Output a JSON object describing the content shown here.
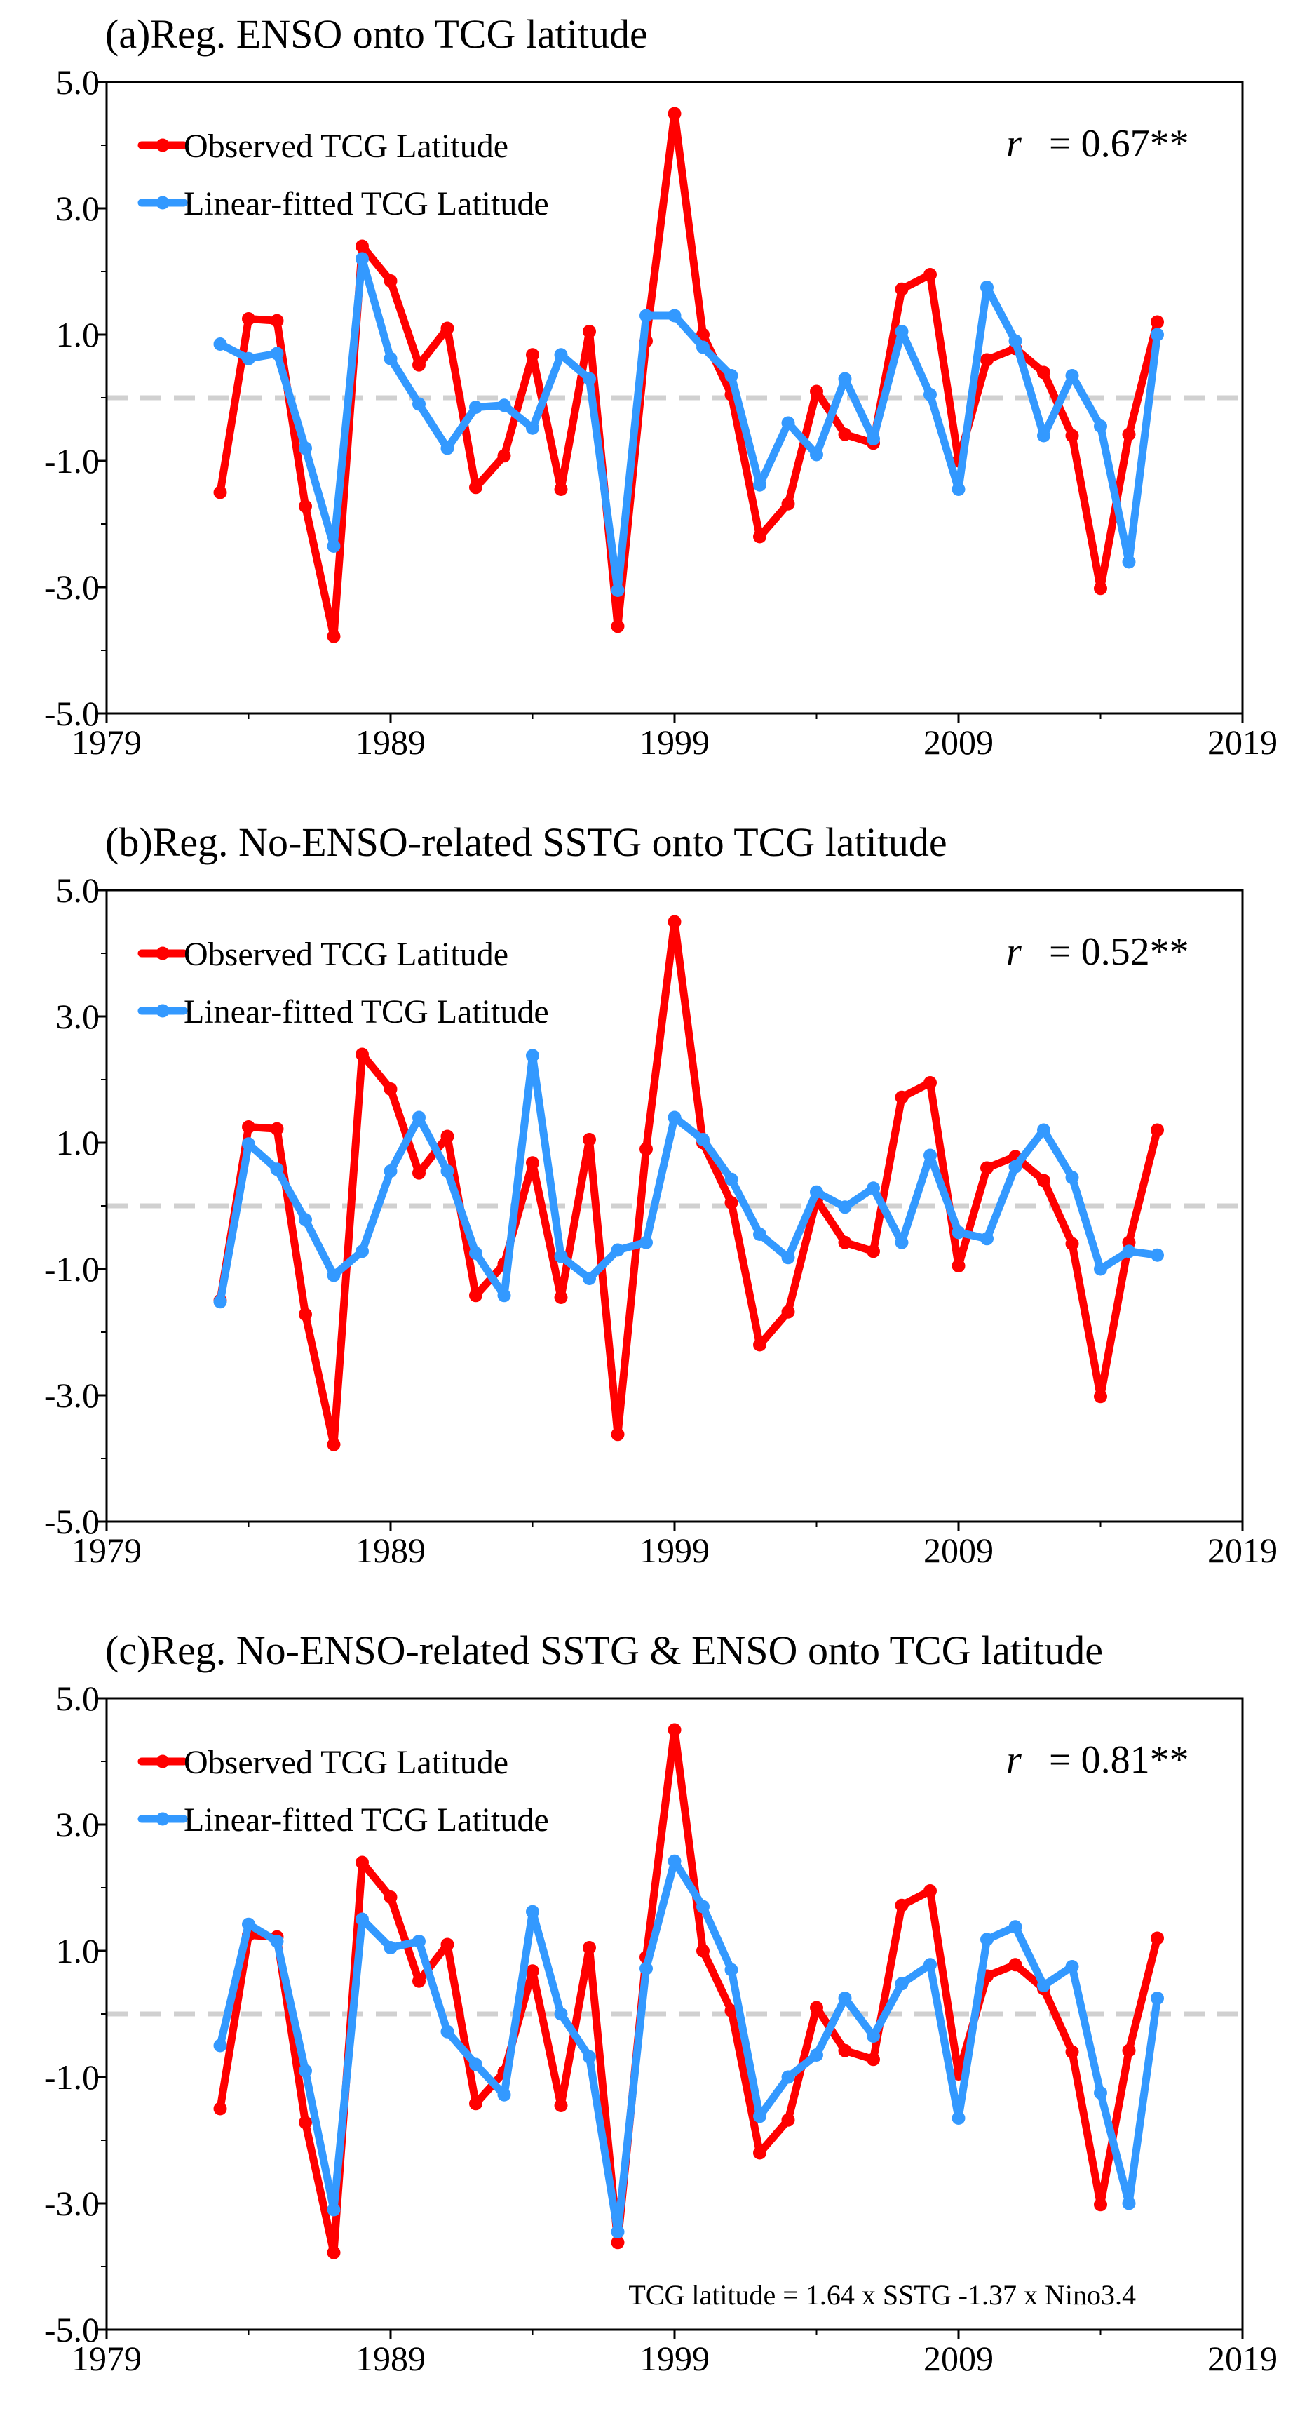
{
  "colors": {
    "observed": "#ff0000",
    "fitted": "#3399ff",
    "zero_line": "#d0d0d0",
    "axis": "#000000"
  },
  "chart_data": [
    {
      "type": "line",
      "title": "(a)Reg. ENSO onto TCG latitude",
      "xlabel": "",
      "ylabel": "",
      "xlim": [
        1979,
        2019
      ],
      "ylim": [
        -5,
        5
      ],
      "x_ticks": [
        "1979",
        "1989",
        "1999",
        "2009",
        "2019"
      ],
      "y_ticks": [
        "-5.0",
        "-3.0",
        "-1.0",
        "1.0",
        "3.0",
        "5.0"
      ],
      "correlation_symbol": "r",
      "correlation_value": "= 0.67**",
      "x": [
        1983,
        1984,
        1985,
        1986,
        1987,
        1988,
        1989,
        1990,
        1991,
        1992,
        1993,
        1994,
        1995,
        1996,
        1997,
        1998,
        1999,
        2000,
        2001,
        2002,
        2003,
        2004,
        2005,
        2006,
        2007,
        2008,
        2009,
        2010,
        2011,
        2012,
        2013,
        2014,
        2015,
        2016
      ],
      "series": [
        {
          "name": "Observed TCG Latitude",
          "values": [
            -1.5,
            1.25,
            1.22,
            -1.72,
            -3.78,
            2.4,
            1.85,
            0.52,
            1.1,
            -1.42,
            -0.92,
            0.68,
            -1.45,
            1.05,
            -3.62,
            0.9,
            4.5,
            1.0,
            0.05,
            -2.2,
            -1.68,
            0.1,
            -0.58,
            -0.72,
            1.72,
            1.95,
            -1.0,
            0.6,
            0.78,
            0.4,
            -0.6,
            -3.02,
            -0.58,
            1.2
          ]
        },
        {
          "name": "Linear-fitted TCG Latitude",
          "values": [
            0.85,
            0.62,
            0.7,
            -0.8,
            -2.35,
            2.2,
            0.62,
            -0.1,
            -0.8,
            -0.15,
            -0.12,
            -0.48,
            0.68,
            0.3,
            -3.05,
            1.3,
            1.3,
            0.8,
            0.35,
            -1.38,
            -0.4,
            -0.9,
            0.3,
            -0.65,
            1.05,
            0.05,
            -1.45,
            1.75,
            0.9,
            -0.6,
            0.35,
            -0.45,
            -2.6,
            1.0
          ]
        }
      ]
    },
    {
      "type": "line",
      "title": "(b)Reg. No-ENSO-related SSTG onto TCG latitude",
      "xlabel": "",
      "ylabel": "",
      "xlim": [
        1979,
        2019
      ],
      "ylim": [
        -5,
        5
      ],
      "x_ticks": [
        "1979",
        "1989",
        "1999",
        "2009",
        "2019"
      ],
      "y_ticks": [
        "-5.0",
        "-3.0",
        "-1.0",
        "1.0",
        "3.0",
        "5.0"
      ],
      "correlation_symbol": "r",
      "correlation_value": "= 0.52**",
      "x": [
        1983,
        1984,
        1985,
        1986,
        1987,
        1988,
        1989,
        1990,
        1991,
        1992,
        1993,
        1994,
        1995,
        1996,
        1997,
        1998,
        1999,
        2000,
        2001,
        2002,
        2003,
        2004,
        2005,
        2006,
        2007,
        2008,
        2009,
        2010,
        2011,
        2012,
        2013,
        2014,
        2015,
        2016
      ],
      "series": [
        {
          "name": "Observed TCG Latitude",
          "values": [
            -1.5,
            1.25,
            1.22,
            -1.72,
            -3.78,
            2.4,
            1.85,
            0.52,
            1.1,
            -1.42,
            -0.92,
            0.68,
            -1.45,
            1.05,
            -3.62,
            0.9,
            4.5,
            1.0,
            0.05,
            -2.2,
            -1.68,
            0.1,
            -0.58,
            -0.72,
            1.72,
            1.95,
            -0.95,
            0.6,
            0.78,
            0.4,
            -0.6,
            -3.02,
            -0.58,
            1.2
          ]
        },
        {
          "name": "Linear-fitted TCG Latitude",
          "values": [
            -1.52,
            0.98,
            0.58,
            -0.22,
            -1.1,
            -0.72,
            0.55,
            1.4,
            0.55,
            -0.75,
            -1.42,
            2.38,
            -0.8,
            -1.15,
            -0.7,
            -0.58,
            1.4,
            1.05,
            0.42,
            -0.45,
            -0.82,
            0.22,
            -0.02,
            0.28,
            -0.58,
            0.8,
            -0.42,
            -0.52,
            0.62,
            1.2,
            0.45,
            -1.0,
            -0.72,
            -0.78
          ]
        }
      ]
    },
    {
      "type": "line",
      "title": "(c)Reg. No-ENSO-related SSTG & ENSO onto TCG latitude",
      "xlabel": "",
      "ylabel": "",
      "xlim": [
        1979,
        2019
      ],
      "ylim": [
        -5,
        5
      ],
      "x_ticks": [
        "1979",
        "1989",
        "1999",
        "2009",
        "2019"
      ],
      "y_ticks": [
        "-5.0",
        "-3.0",
        "-1.0",
        "1.0",
        "3.0",
        "5.0"
      ],
      "correlation_symbol": "r",
      "correlation_value": "= 0.81**",
      "annotation": "TCG latitude = 1.64 x SSTG -1.37 x Nino3.4",
      "x": [
        1983,
        1984,
        1985,
        1986,
        1987,
        1988,
        1989,
        1990,
        1991,
        1992,
        1993,
        1994,
        1995,
        1996,
        1997,
        1998,
        1999,
        2000,
        2001,
        2002,
        2003,
        2004,
        2005,
        2006,
        2007,
        2008,
        2009,
        2010,
        2011,
        2012,
        2013,
        2014,
        2015,
        2016
      ],
      "series": [
        {
          "name": "Observed TCG Latitude",
          "values": [
            -1.5,
            1.25,
            1.22,
            -1.72,
            -3.78,
            2.4,
            1.85,
            0.52,
            1.1,
            -1.42,
            -0.92,
            0.68,
            -1.45,
            1.05,
            -3.62,
            0.9,
            4.5,
            1.0,
            0.05,
            -2.2,
            -1.68,
            0.1,
            -0.58,
            -0.72,
            1.72,
            1.95,
            -0.95,
            0.6,
            0.78,
            0.4,
            -0.6,
            -3.02,
            -0.58,
            1.2
          ]
        },
        {
          "name": "Linear-fitted TCG Latitude",
          "values": [
            -0.5,
            1.42,
            1.15,
            -0.9,
            -3.1,
            1.5,
            1.05,
            1.15,
            -0.28,
            -0.8,
            -1.28,
            1.62,
            0.0,
            -0.68,
            -3.45,
            0.72,
            2.42,
            1.7,
            0.7,
            -1.62,
            -1.0,
            -0.65,
            0.25,
            -0.35,
            0.48,
            0.78,
            -1.65,
            1.18,
            1.38,
            0.45,
            0.75,
            -1.25,
            -3.0,
            0.25
          ]
        }
      ]
    }
  ]
}
